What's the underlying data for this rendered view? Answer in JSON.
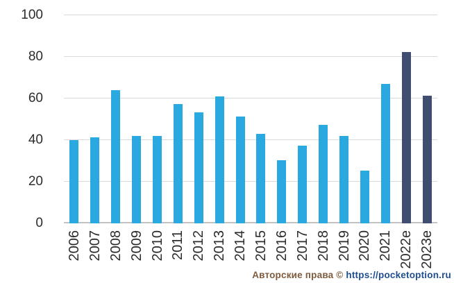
{
  "chart_data": {
    "type": "bar",
    "title": "",
    "xlabel": "",
    "ylabel": "",
    "categories": [
      "2006",
      "2007",
      "2008",
      "2009",
      "2010",
      "2011",
      "2012",
      "2013",
      "2014",
      "2015",
      "2016",
      "2017",
      "2018",
      "2019",
      "2020",
      "2021",
      "2022e",
      "2023e"
    ],
    "values": [
      40,
      41.5,
      64,
      42,
      42,
      57.5,
      53.5,
      61,
      51.5,
      43,
      30.5,
      37.5,
      47.5,
      42,
      25.5,
      67,
      82.5,
      61.5
    ],
    "forecast_categories": [
      "2022e",
      "2023e"
    ],
    "ylim": [
      0,
      100
    ],
    "yticks": [
      0,
      20,
      40,
      60,
      80,
      100
    ],
    "grid": true,
    "legend": false,
    "colors": {
      "bar": "#29a9e0",
      "forecast_bar": "#3f4e70",
      "gridline": "#d9d9d9",
      "baseline": "#c3c3c3",
      "tick_text": "#2c2c2c"
    }
  },
  "watermark": {
    "prefix": "Авторские права © ",
    "url": "https://pocketoption.ru",
    "colors": {
      "prefix": "#7d5a3c",
      "url": "#1e4e8f"
    }
  }
}
